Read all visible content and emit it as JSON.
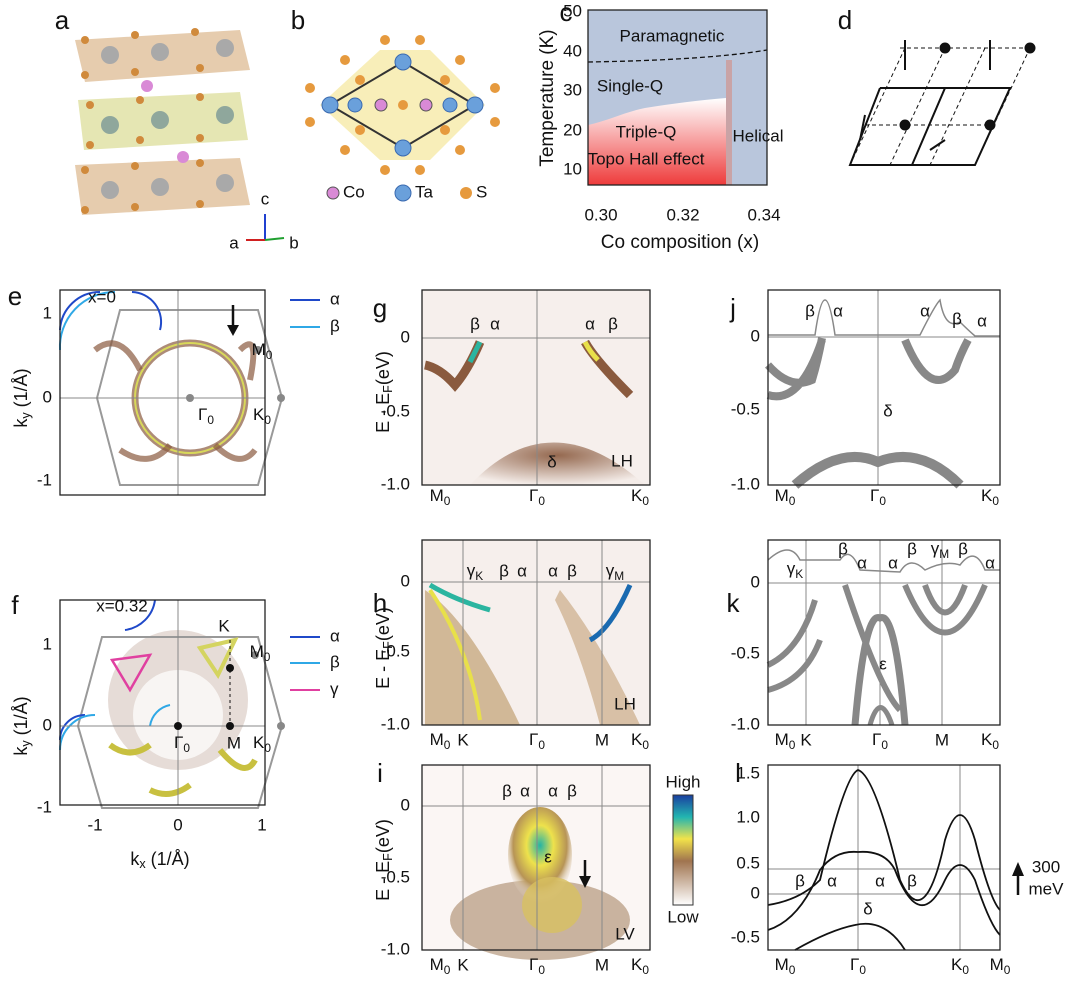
{
  "panels": {
    "a": {
      "label": "a",
      "axes": [
        "c",
        "a",
        "b"
      ]
    },
    "b": {
      "label": "b",
      "legend": [
        "Co",
        "Ta",
        "S"
      ]
    },
    "c": {
      "label": "c",
      "ylabel": "Temperature (K)",
      "xlabel": "Co composition (x)",
      "yticks": [
        "50",
        "40",
        "30",
        "20",
        "10"
      ],
      "xticks": [
        "0.30",
        "0.32",
        "0.34"
      ],
      "regions": [
        "Paramagnetic",
        "Single-Q",
        "Triple-Q",
        "Topo Hall effect",
        "Helical"
      ]
    },
    "d": {
      "label": "d"
    },
    "e": {
      "label": "e",
      "composition": "x=0",
      "ylabel": {
        "main": "k",
        "sub": "y",
        "tail": " (1/Å)"
      },
      "yticks": [
        "1",
        "0",
        "-1"
      ],
      "legend": [
        "α",
        "β"
      ],
      "points": [
        {
          "main": "M",
          "sub": "0"
        },
        {
          "main": "Γ",
          "sub": "0"
        },
        {
          "main": "K",
          "sub": "0"
        }
      ]
    },
    "f": {
      "label": "f",
      "composition": "x=0.32",
      "ylabel": {
        "main": "k",
        "sub": "y",
        "tail": " (1/Å)"
      },
      "xlabel": {
        "main": "k",
        "sub": "x",
        "tail": " (1/Å)"
      },
      "yticks": [
        "1",
        "0",
        "-1"
      ],
      "xticks": [
        "-1",
        "0",
        "1"
      ],
      "legend": [
        "α",
        "β",
        "γ"
      ],
      "points": [
        "K",
        {
          "main": "M",
          "sub": "0"
        },
        {
          "main": "Γ",
          "sub": "0"
        },
        "M",
        {
          "main": "K",
          "sub": "0"
        }
      ]
    },
    "g": {
      "label": "g",
      "ylabel": {
        "main": "E - E",
        "sub": "F",
        "tail": "(eV)"
      },
      "yticks": [
        "0",
        "-0.5",
        "-1.0"
      ],
      "xticks": [
        {
          "main": "M",
          "sub": "0"
        },
        {
          "main": "Γ",
          "sub": "0"
        },
        {
          "main": "K",
          "sub": "0"
        }
      ],
      "bands": [
        "β",
        "α",
        "α",
        "β",
        "δ"
      ],
      "polarization": "LH"
    },
    "h": {
      "label": "h",
      "ylabel": {
        "main": "E - E",
        "sub": "F",
        "tail": "(eV)"
      },
      "yticks": [
        "0",
        "-0.5",
        "-1.0"
      ],
      "xticks": [
        {
          "main": "M",
          "sub": "0"
        },
        "K",
        {
          "main": "Γ",
          "sub": "0"
        },
        "M",
        {
          "main": "K",
          "sub": "0"
        }
      ],
      "bands": [
        {
          "main": "γ",
          "sub": "K"
        },
        "β",
        "α",
        "α",
        "β",
        {
          "main": "γ",
          "sub": "M"
        }
      ],
      "polarization": "LH"
    },
    "i": {
      "label": "i",
      "ylabel": {
        "main": "E - E",
        "sub": "F",
        "tail": "(eV)"
      },
      "yticks": [
        "0",
        "-0.5",
        "-1.0"
      ],
      "xticks": [
        {
          "main": "M",
          "sub": "0"
        },
        "K",
        {
          "main": "Γ",
          "sub": "0"
        },
        "M",
        {
          "main": "K",
          "sub": "0"
        }
      ],
      "bands": [
        "β",
        "α",
        "α",
        "β",
        "ε"
      ],
      "polarization": "LV",
      "colorbar": [
        "High",
        "Low"
      ]
    },
    "j": {
      "label": "j",
      "yticks": [
        "0",
        "-0.5",
        "-1.0"
      ],
      "xticks": [
        {
          "main": "M",
          "sub": "0"
        },
        {
          "main": "Γ",
          "sub": "0"
        },
        {
          "main": "K",
          "sub": "0"
        }
      ],
      "bands": [
        "β",
        "α",
        "α",
        "β",
        "α",
        "δ"
      ]
    },
    "k": {
      "label": "k",
      "yticks": [
        "0",
        "-0.5",
        "-1.0"
      ],
      "xticks": [
        {
          "main": "M",
          "sub": "0"
        },
        "K",
        {
          "main": "Γ",
          "sub": "0"
        },
        "M",
        {
          "main": "K",
          "sub": "0"
        }
      ],
      "bands": [
        {
          "main": "γ",
          "sub": "K"
        },
        "β",
        "α",
        "α",
        "β",
        {
          "main": "γ",
          "sub": "M"
        },
        "β",
        "α",
        "ε"
      ]
    },
    "l": {
      "label": "l",
      "yticks": [
        "1.5",
        "1.0",
        "0.5",
        "0",
        "-0.5"
      ],
      "xticks": [
        {
          "main": "M",
          "sub": "0"
        },
        {
          "main": "Γ",
          "sub": "0"
        },
        {
          "main": "K",
          "sub": "0"
        },
        {
          "main": "M",
          "sub": "0"
        }
      ],
      "bands": [
        "β",
        "α",
        "α",
        "β",
        "δ"
      ],
      "scale": [
        "300",
        "meV"
      ]
    }
  }
}
